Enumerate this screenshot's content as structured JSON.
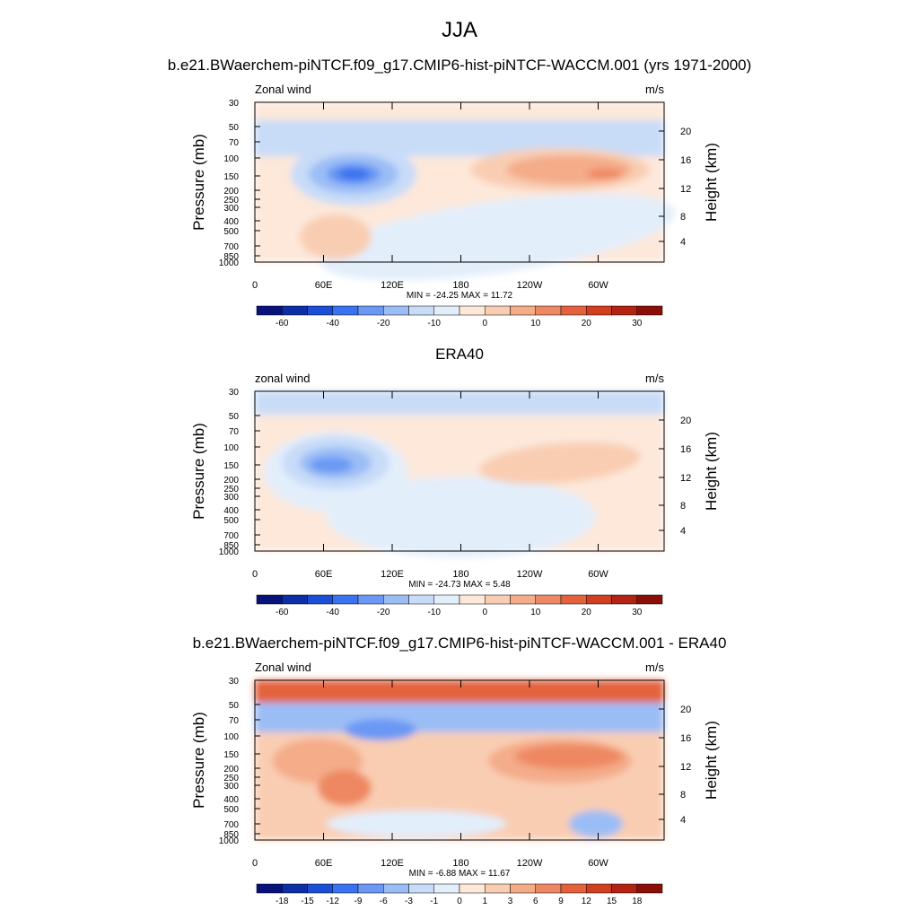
{
  "figure": {
    "title": "JJA"
  },
  "chart_data": [
    {
      "type": "heatmap",
      "title": "b.e21.BWaerchem-piNTCF.f09_g17.CMIP6-hist-piNTCF-WACCM.001 (yrs 1971-2000)",
      "left_label": "Zonal wind",
      "right_label": "m/s",
      "xlabel": "",
      "ylabel": "Pressure (mb)",
      "y2label": "Height (km)",
      "x_ticks": [
        "0",
        "60E",
        "120E",
        "180",
        "120W",
        "60W"
      ],
      "y_ticks": [
        "30",
        "50",
        "70",
        "100",
        "150",
        "200",
        "250",
        "300",
        "400",
        "500",
        "700",
        "850",
        "1000"
      ],
      "y2_ticks": [
        "20",
        "16",
        "12",
        "8",
        "4"
      ],
      "stats": "MIN = -24.25  MAX =  11.72",
      "colorbar_labels": [
        "-60",
        "-40",
        "-20",
        "-10",
        "0",
        "10",
        "20",
        "30"
      ],
      "colorbar_colors": [
        "#08127a",
        "#0c2fa8",
        "#1a4fd6",
        "#3a72ef",
        "#6b98f4",
        "#9bbdf6",
        "#c8dcf8",
        "#e3eefb",
        "#fde8da",
        "#f9cdb2",
        "#f4ac89",
        "#ee8862",
        "#e3623d",
        "#d13f21",
        "#b22314",
        "#8b0f08"
      ],
      "min": -24.25,
      "max": 11.72
    },
    {
      "type": "heatmap",
      "title": "ERA40",
      "left_label": "zonal wind",
      "right_label": "m/s",
      "xlabel": "",
      "ylabel": "Pressure (mb)",
      "y2label": "Height (km)",
      "x_ticks": [
        "0",
        "60E",
        "120E",
        "180",
        "120W",
        "60W"
      ],
      "y_ticks": [
        "30",
        "50",
        "70",
        "100",
        "150",
        "200",
        "250",
        "300",
        "400",
        "500",
        "700",
        "850",
        "1000"
      ],
      "y2_ticks": [
        "20",
        "16",
        "12",
        "8",
        "4"
      ],
      "stats": "MIN = -24.73  MAX =   5.48",
      "colorbar_labels": [
        "-60",
        "-40",
        "-20",
        "-10",
        "0",
        "10",
        "20",
        "30"
      ],
      "colorbar_colors": [
        "#08127a",
        "#0c2fa8",
        "#1a4fd6",
        "#3a72ef",
        "#6b98f4",
        "#9bbdf6",
        "#c8dcf8",
        "#e3eefb",
        "#fde8da",
        "#f9cdb2",
        "#f4ac89",
        "#ee8862",
        "#e3623d",
        "#d13f21",
        "#b22314",
        "#8b0f08"
      ],
      "min": -24.73,
      "max": 5.48
    },
    {
      "type": "heatmap",
      "title": "b.e21.BWaerchem-piNTCF.f09_g17.CMIP6-hist-piNTCF-WACCM.001 - ERA40",
      "left_label": "Zonal wind",
      "right_label": "m/s",
      "xlabel": "",
      "ylabel": "Pressure (mb)",
      "y2label": "Height (km)",
      "x_ticks": [
        "0",
        "60E",
        "120E",
        "180",
        "120W",
        "60W"
      ],
      "y_ticks": [
        "30",
        "50",
        "70",
        "100",
        "150",
        "200",
        "250",
        "300",
        "400",
        "500",
        "700",
        "850",
        "1000"
      ],
      "y2_ticks": [
        "20",
        "16",
        "12",
        "8",
        "4"
      ],
      "stats": "MIN =  -6.88  MAX =  11.67",
      "colorbar_labels": [
        "-18",
        "-15",
        "-12",
        "-9",
        "-6",
        "-3",
        "-1",
        "0",
        "1",
        "3",
        "6",
        "9",
        "12",
        "15",
        "18"
      ],
      "colorbar_colors": [
        "#08127a",
        "#0c2fa8",
        "#1a4fd6",
        "#3a72ef",
        "#6b98f4",
        "#9bbdf6",
        "#c8dcf8",
        "#e3eefb",
        "#fde8da",
        "#f9cdb2",
        "#f4ac89",
        "#ee8862",
        "#e3623d",
        "#d13f21",
        "#b22314",
        "#8b0f08"
      ],
      "min": -6.88,
      "max": 11.67
    }
  ]
}
